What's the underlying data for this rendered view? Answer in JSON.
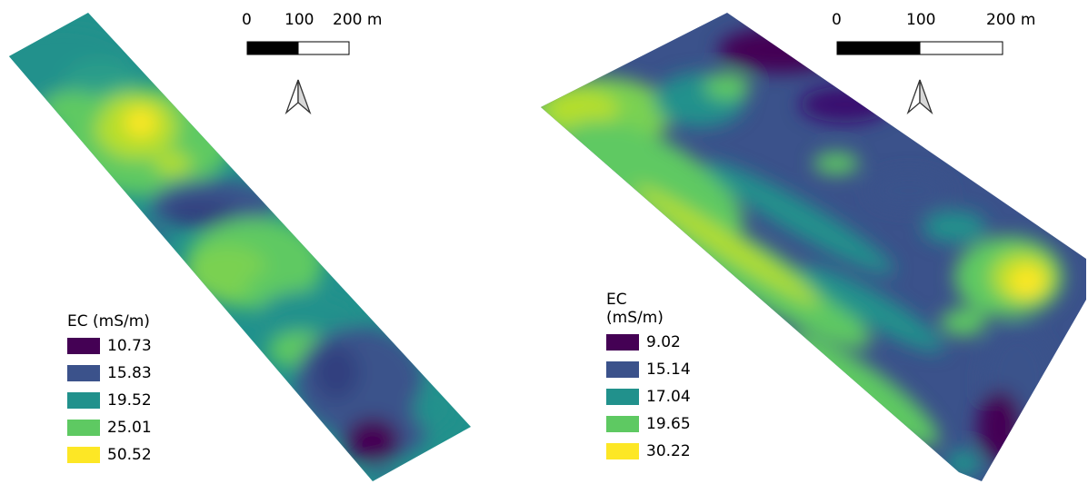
{
  "palette": {
    "c1": "#440154",
    "c2": "#3b528b",
    "c3": "#21918c",
    "c4": "#5ec962",
    "c5": "#fde725"
  },
  "left_map": {
    "scale_bar": {
      "labels": [
        "0",
        "100",
        "200 m"
      ]
    },
    "north_arrow": "north-arrow-icon",
    "legend": {
      "title": "EC (mS/m)",
      "items": [
        {
          "label": "10.73",
          "color": "#440154"
        },
        {
          "label": "15.83",
          "color": "#3b528b"
        },
        {
          "label": "19.52",
          "color": "#21918c"
        },
        {
          "label": "25.01",
          "color": "#5ec962"
        },
        {
          "label": "50.52",
          "color": "#fde725"
        }
      ]
    }
  },
  "right_map": {
    "scale_bar": {
      "labels": [
        "0",
        "100",
        "200 m"
      ]
    },
    "north_arrow": "north-arrow-icon",
    "legend": {
      "title": "EC (mS/m)",
      "items": [
        {
          "label": "9.02",
          "color": "#440154"
        },
        {
          "label": "15.14",
          "color": "#3b528b"
        },
        {
          "label": "17.04",
          "color": "#21918c"
        },
        {
          "label": "19.65",
          "color": "#5ec962"
        },
        {
          "label": "30.22",
          "color": "#fde725"
        }
      ]
    }
  }
}
